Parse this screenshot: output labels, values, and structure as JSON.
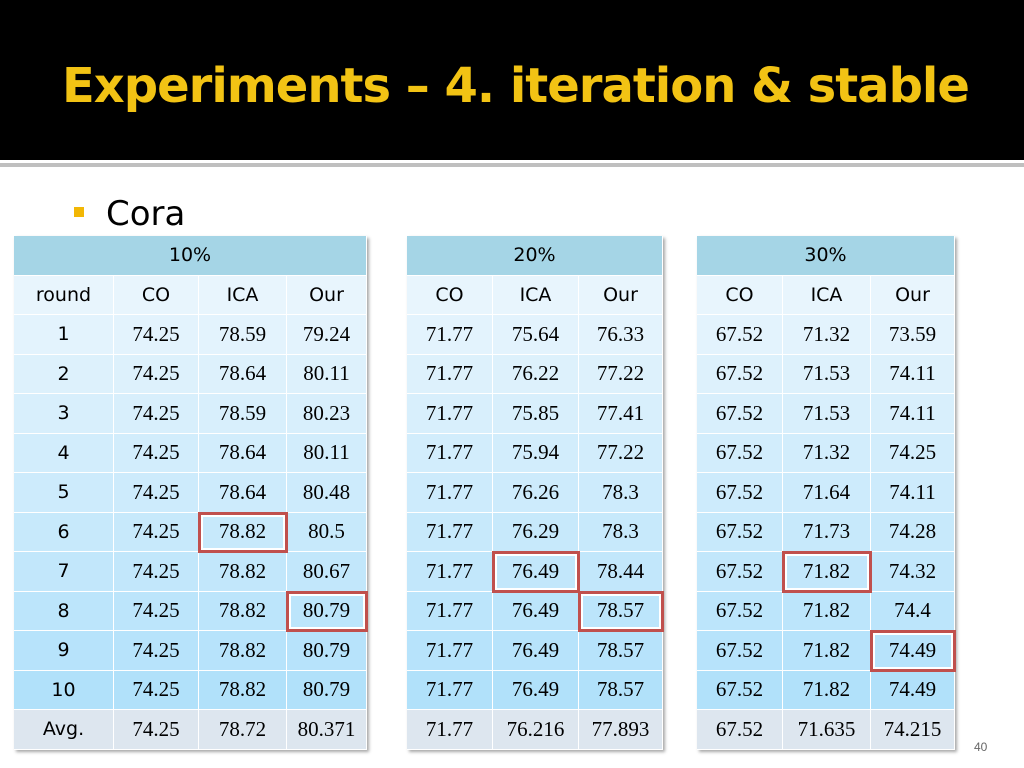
{
  "title": "Experiments – 4. iteration & stable",
  "bullet": "Cora",
  "page_number": "40",
  "tables": [
    {
      "group": "10%",
      "columns": [
        "round",
        "CO",
        "ICA",
        "Our"
      ],
      "rows": [
        [
          "1",
          "74.25",
          "78.59",
          "79.24"
        ],
        [
          "2",
          "74.25",
          "78.64",
          "80.11"
        ],
        [
          "3",
          "74.25",
          "78.59",
          "80.23"
        ],
        [
          "4",
          "74.25",
          "78.64",
          "80.11"
        ],
        [
          "5",
          "74.25",
          "78.64",
          "80.48"
        ],
        [
          "6",
          "74.25",
          "78.82",
          "80.5"
        ],
        [
          "7",
          "74.25",
          "78.82",
          "80.67"
        ],
        [
          "8",
          "74.25",
          "78.82",
          "80.79"
        ],
        [
          "9",
          "74.25",
          "78.82",
          "80.79"
        ],
        [
          "10",
          "74.25",
          "78.82",
          "80.79"
        ]
      ],
      "average": [
        "Avg.",
        "74.25",
        "78.72",
        "80.371"
      ],
      "highlighted_cells": [
        [
          5,
          2
        ],
        [
          7,
          3
        ]
      ]
    },
    {
      "group": "20%",
      "columns": [
        "CO",
        "ICA",
        "Our"
      ],
      "rows": [
        [
          "71.77",
          "75.64",
          "76.33"
        ],
        [
          "71.77",
          "76.22",
          "77.22"
        ],
        [
          "71.77",
          "75.85",
          "77.41"
        ],
        [
          "71.77",
          "75.94",
          "77.22"
        ],
        [
          "71.77",
          "76.26",
          "78.3"
        ],
        [
          "71.77",
          "76.29",
          "78.3"
        ],
        [
          "71.77",
          "76.49",
          "78.44"
        ],
        [
          "71.77",
          "76.49",
          "78.57"
        ],
        [
          "71.77",
          "76.49",
          "78.57"
        ],
        [
          "71.77",
          "76.49",
          "78.57"
        ]
      ],
      "average": [
        "71.77",
        "76.216",
        "77.893"
      ],
      "highlighted_cells": [
        [
          6,
          1
        ],
        [
          7,
          2
        ]
      ]
    },
    {
      "group": "30%",
      "columns": [
        "CO",
        "ICA",
        "Our"
      ],
      "rows": [
        [
          "67.52",
          "71.32",
          "73.59"
        ],
        [
          "67.52",
          "71.53",
          "74.11"
        ],
        [
          "67.52",
          "71.53",
          "74.11"
        ],
        [
          "67.52",
          "71.32",
          "74.25"
        ],
        [
          "67.52",
          "71.64",
          "74.11"
        ],
        [
          "67.52",
          "71.73",
          "74.28"
        ],
        [
          "67.52",
          "71.82",
          "74.32"
        ],
        [
          "67.52",
          "71.82",
          "74.4"
        ],
        [
          "67.52",
          "71.82",
          "74.49"
        ],
        [
          "67.52",
          "71.82",
          "74.49"
        ]
      ],
      "average": [
        "67.52",
        "71.635",
        "74.215"
      ],
      "highlighted_cells": [
        [
          6,
          1
        ],
        [
          8,
          2
        ]
      ]
    }
  ]
}
